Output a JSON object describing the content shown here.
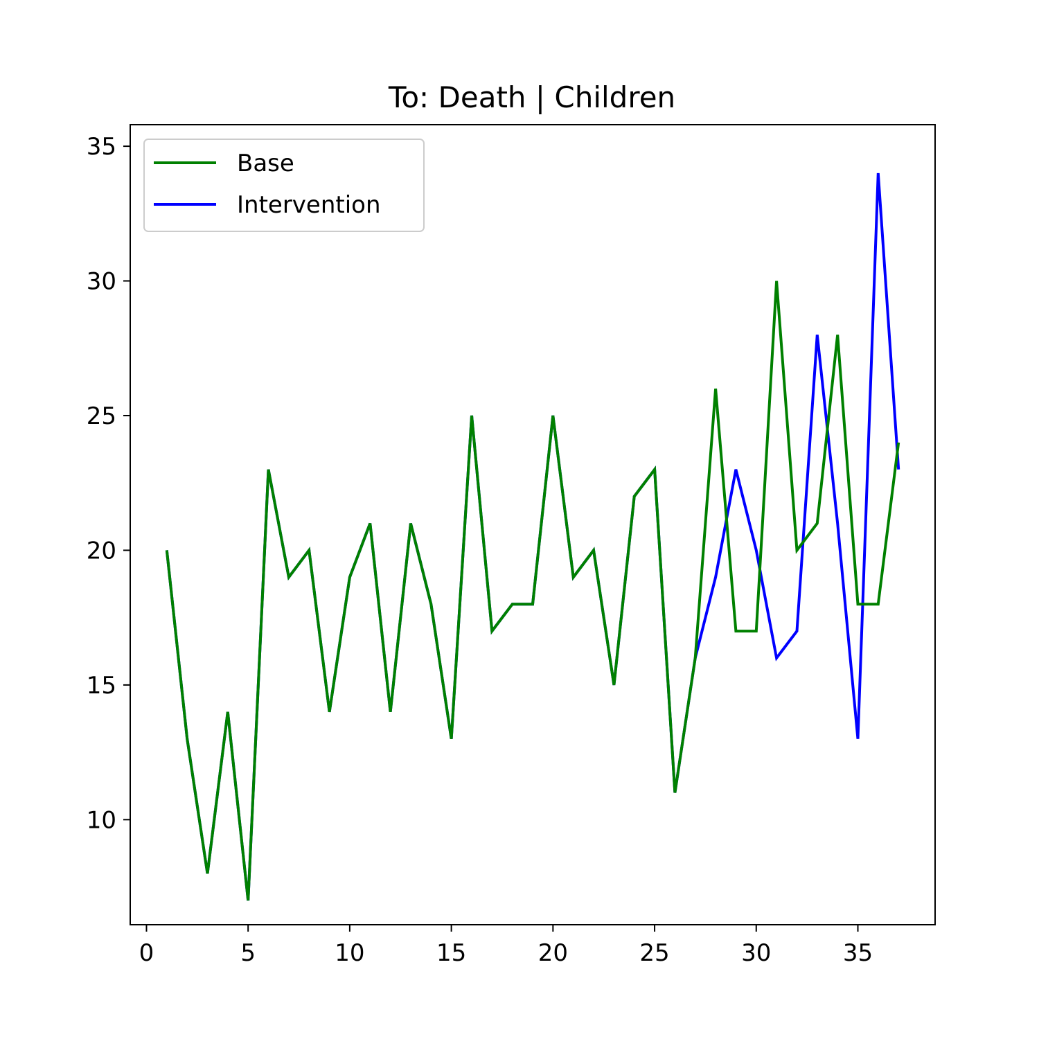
{
  "chart_data": {
    "type": "line",
    "title": "To: Death | Children",
    "xlabel": "",
    "ylabel": "",
    "xlim": [
      -0.8,
      38.8
    ],
    "ylim": [
      6.1,
      35.8
    ],
    "grid": false,
    "legend_position": "top-left",
    "x_ticks": [
      0,
      5,
      10,
      15,
      20,
      25,
      30,
      35
    ],
    "y_ticks": [
      10,
      15,
      20,
      25,
      30,
      35
    ],
    "x": [
      1,
      2,
      3,
      4,
      5,
      6,
      7,
      8,
      9,
      10,
      11,
      12,
      13,
      14,
      15,
      16,
      17,
      18,
      19,
      20,
      21,
      22,
      23,
      24,
      25,
      26,
      27,
      28,
      29,
      30,
      31,
      32,
      33,
      34,
      35,
      36,
      37
    ],
    "series": [
      {
        "name": "Base",
        "color": "#008000",
        "values": [
          20,
          13,
          8,
          14,
          7,
          23,
          19,
          20,
          14,
          19,
          21,
          14,
          21,
          18,
          13,
          25,
          17,
          18,
          18,
          25,
          19,
          20,
          15,
          22,
          23,
          11,
          16,
          26,
          17,
          17,
          30,
          20,
          21,
          28,
          18,
          18,
          24
        ]
      },
      {
        "name": "Intervention",
        "color": "#0000ff",
        "values": [
          20,
          13,
          8,
          14,
          7,
          23,
          19,
          20,
          14,
          19,
          21,
          14,
          21,
          18,
          13,
          25,
          17,
          18,
          18,
          25,
          19,
          20,
          15,
          22,
          23,
          11,
          16,
          19,
          23,
          20,
          16,
          17,
          28,
          21,
          13,
          34,
          23
        ]
      }
    ]
  }
}
